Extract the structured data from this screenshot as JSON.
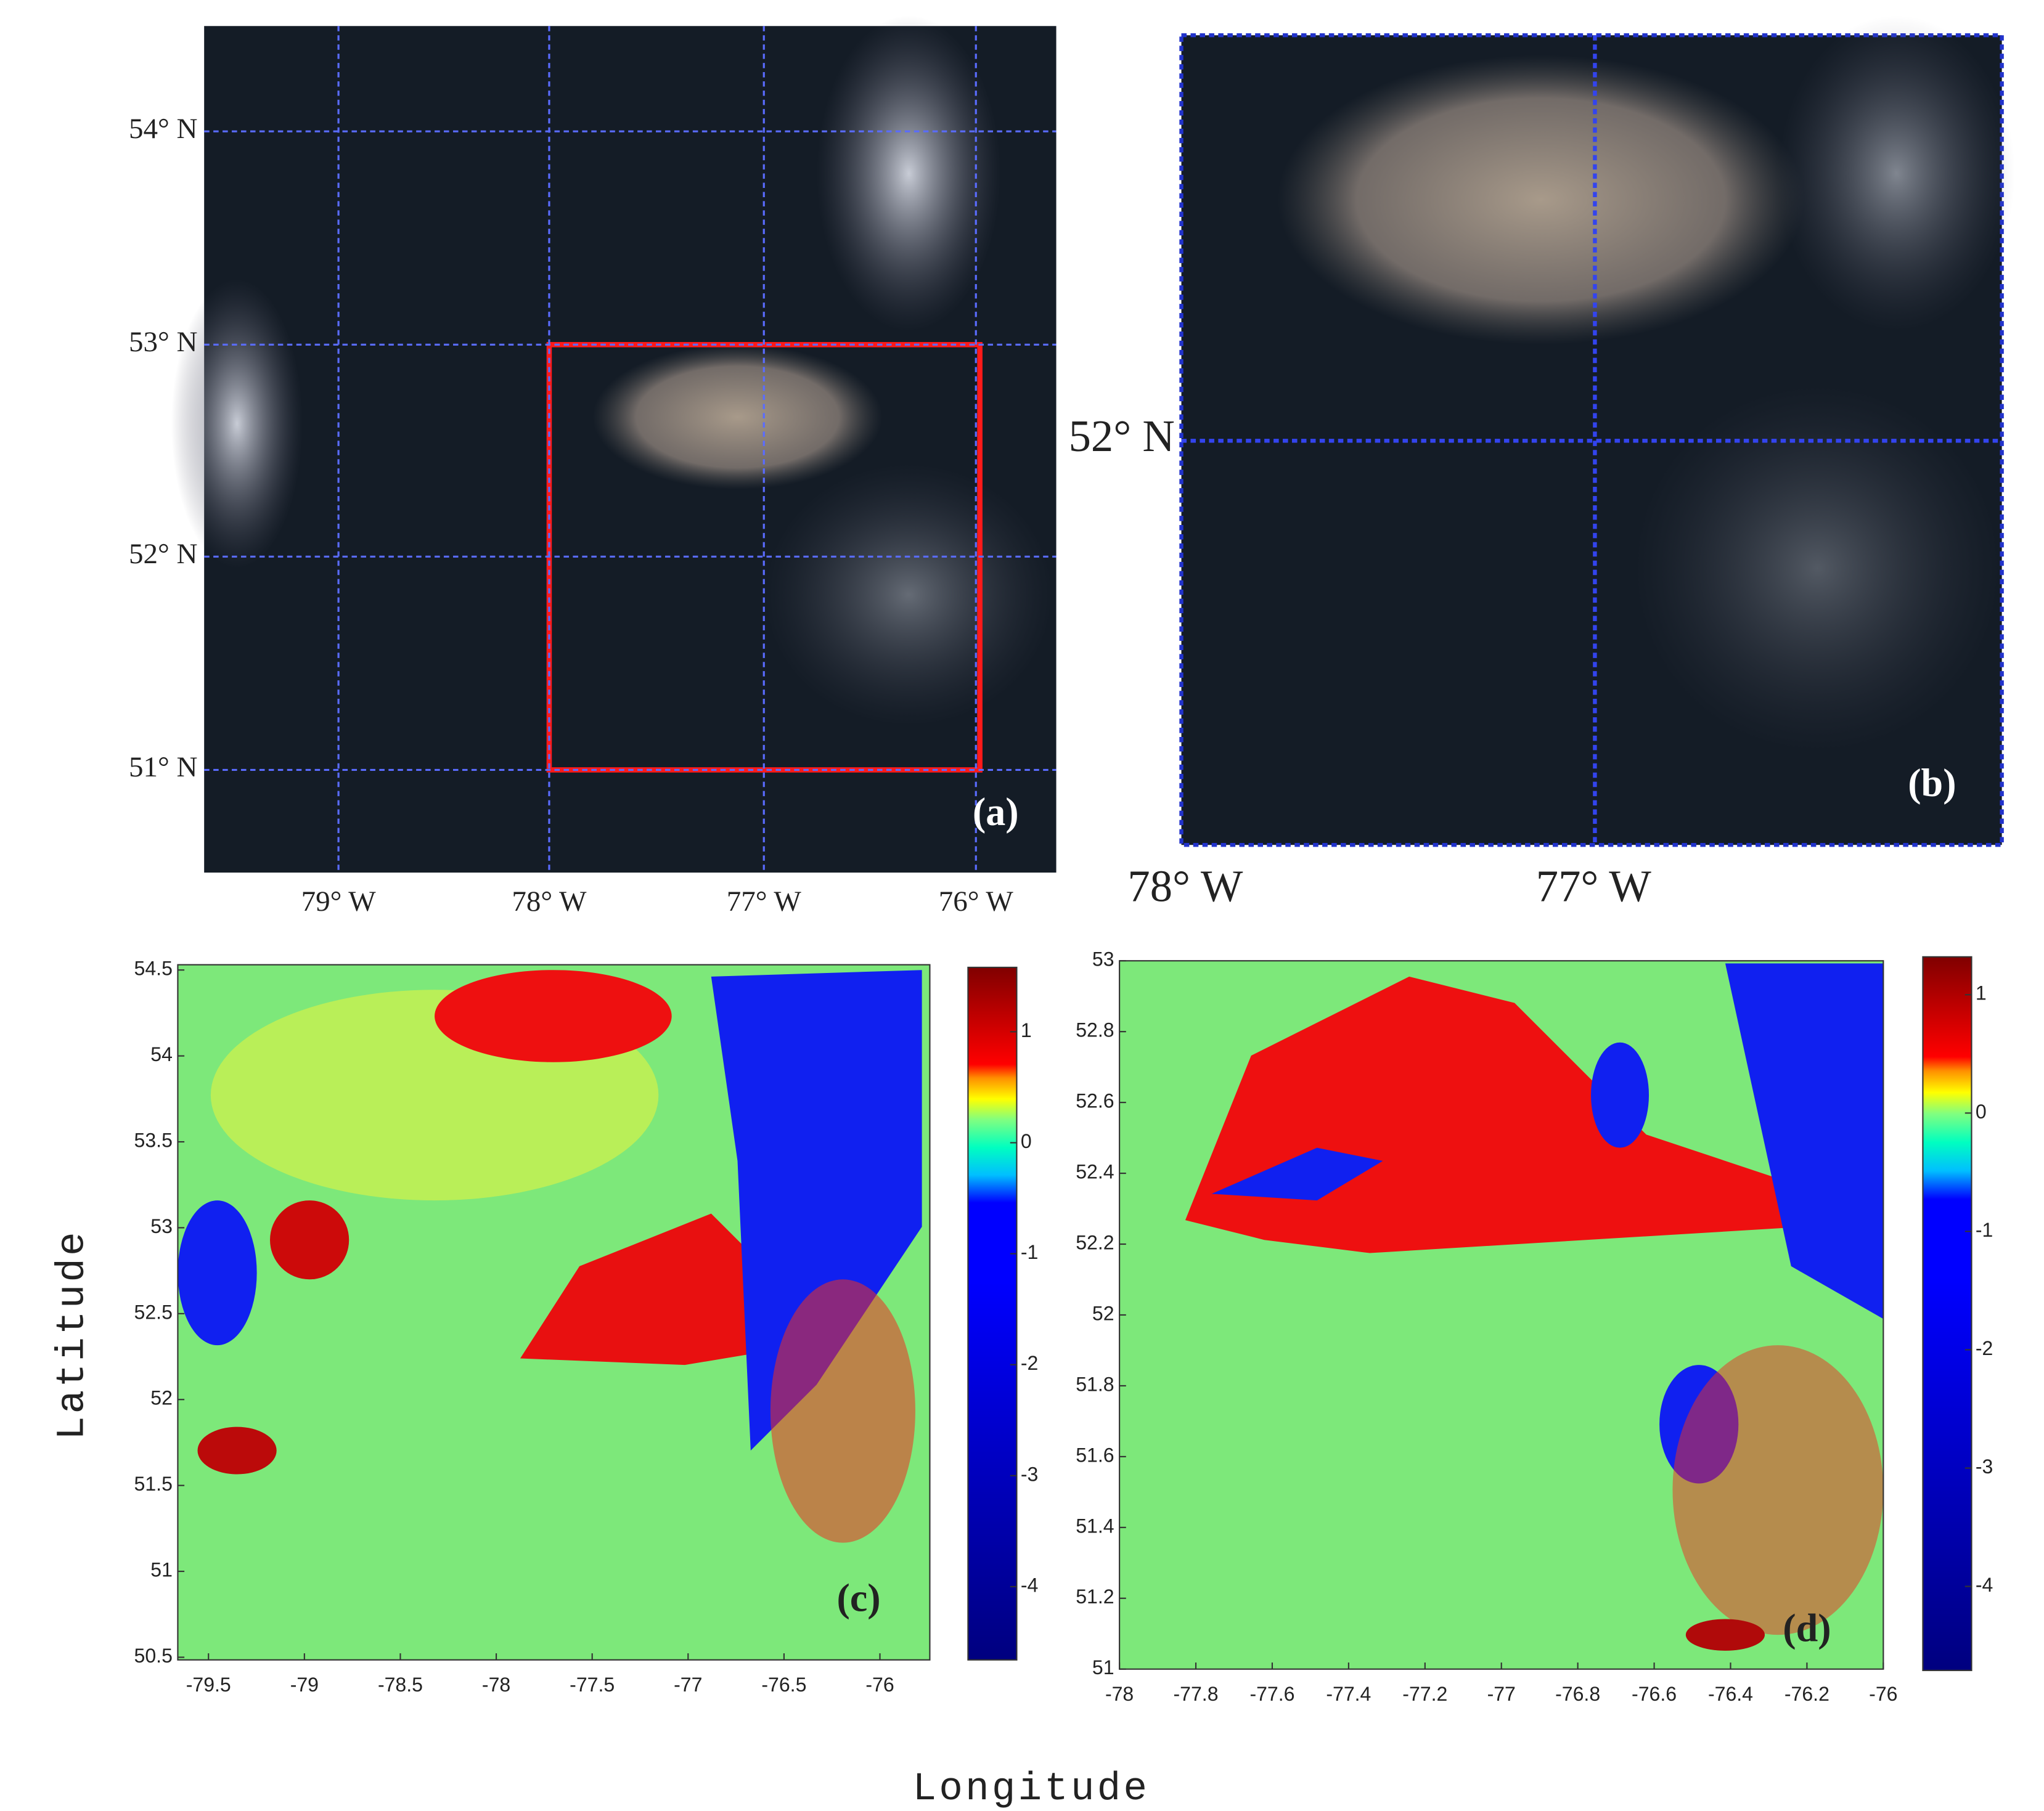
{
  "panels": [
    {
      "label": "(a)",
      "lat_ticks": [
        "54° N",
        "53° N",
        "52° N",
        "51° N"
      ],
      "lon_ticks": [
        "79° W",
        "78° W",
        "77° W",
        "76° W"
      ]
    },
    {
      "label": "(b)",
      "lat_ticks": [
        "52° N"
      ],
      "lon_ticks": [
        "78° W",
        "77° W"
      ]
    },
    {
      "label": "(c)",
      "xlim": [
        -79.66,
        -75.74
      ],
      "ylim": [
        50.5,
        54.5
      ],
      "xticks": [
        -79.5,
        -79,
        -78.5,
        -78,
        -77.5,
        -77,
        -76.5,
        -76
      ],
      "yticks": [
        50.5,
        51,
        51.5,
        52,
        52.5,
        53,
        53.5,
        54,
        54.5
      ],
      "colorbar": {
        "lim": [
          -4.66,
          1.58
        ],
        "ticks": [
          -4,
          -3,
          -2,
          -1,
          0,
          1
        ]
      }
    },
    {
      "label": "(d)",
      "xlim": [
        -78,
        -76
      ],
      "ylim": [
        51,
        53
      ],
      "xticks": [
        -78,
        -77.8,
        -77.6,
        -77.4,
        -77.2,
        -77,
        -76.8,
        -76.6,
        -76.4,
        -76.2,
        -76
      ],
      "yticks": [
        51,
        51.2,
        51.4,
        51.6,
        51.8,
        52,
        52.2,
        52.4,
        52.6,
        52.8,
        53
      ],
      "colorbar": {
        "lim": [
          -4.71,
          1.32
        ],
        "ticks": [
          -4,
          -3,
          -2,
          -1,
          0,
          1
        ]
      }
    }
  ],
  "x_label": "Longitude",
  "y_label": "Latitude"
}
